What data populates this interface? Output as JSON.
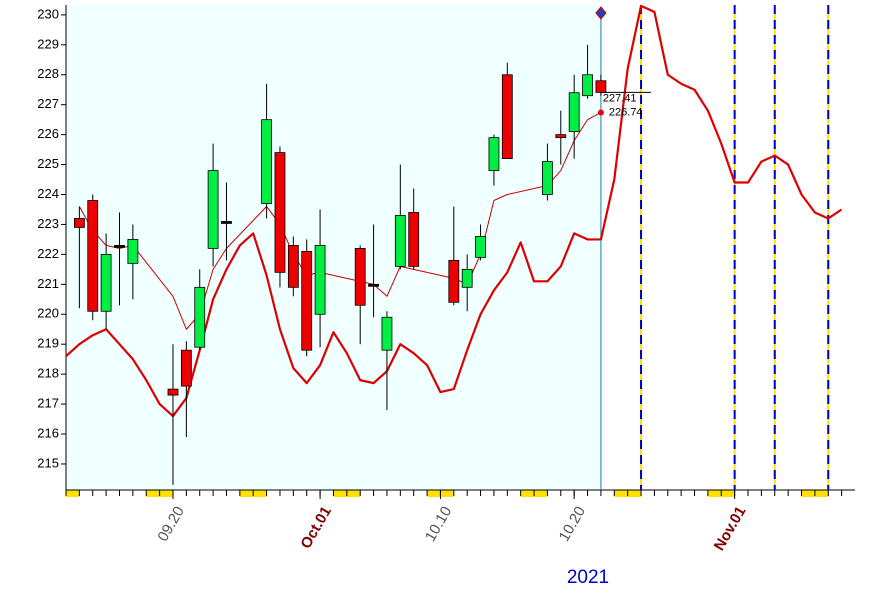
{
  "chart_data": {
    "type": "candlestick",
    "xlabel": "2021",
    "xlim": [
      "2021-09-12",
      "2021-11-10"
    ],
    "ylim": [
      214.13,
      230.33
    ],
    "yticks": [
      215,
      216,
      217,
      218,
      219,
      220,
      221,
      222,
      223,
      224,
      225,
      226,
      227,
      228,
      229,
      230
    ],
    "xticks": [
      {
        "value": "2021-09-20",
        "label": "09.20"
      },
      {
        "value": "2021-10-10",
        "label": "10.10"
      },
      {
        "value": "2021-10-20",
        "label": "10.20"
      }
    ],
    "month_ticks": [
      {
        "value": "2021-10-01",
        "label": "Oct.01"
      },
      {
        "value": "2021-11-01",
        "label": "Nov.01"
      }
    ],
    "up_color": "#00ee44",
    "down_color": "#ee0000",
    "x": [
      "2021-09-13",
      "2021-09-14",
      "2021-09-15",
      "2021-09-16",
      "2021-09-17",
      "2021-09-20",
      "2021-09-21",
      "2021-09-22",
      "2021-09-23",
      "2021-09-24",
      "2021-09-27",
      "2021-09-28",
      "2021-09-29",
      "2021-09-30",
      "2021-10-01",
      "2021-10-04",
      "2021-10-05",
      "2021-10-06",
      "2021-10-07",
      "2021-10-08",
      "2021-10-11",
      "2021-10-12",
      "2021-10-13",
      "2021-10-14",
      "2021-10-15",
      "2021-10-18",
      "2021-10-19",
      "2021-10-20",
      "2021-10-21",
      "2021-10-22"
    ],
    "open": [
      223.2,
      223.8,
      220.1,
      222.3,
      221.7,
      217.5,
      218.8,
      218.9,
      222.2,
      223.1,
      223.7,
      225.4,
      222.3,
      222.1,
      220.0,
      222.2,
      221.0,
      218.8,
      221.6,
      223.4,
      221.8,
      220.9,
      221.9,
      224.8,
      228.0,
      224.0,
      226.0,
      226.1,
      227.3,
      227.8
    ],
    "high": [
      223.6,
      224.0,
      222.7,
      223.4,
      223.0,
      219.0,
      219.1,
      221.5,
      225.7,
      224.4,
      227.7,
      225.6,
      222.6,
      222.5,
      223.5,
      222.3,
      223.0,
      220.1,
      225.0,
      224.2,
      223.6,
      222.0,
      223.0,
      226.0,
      228.4,
      225.7,
      226.8,
      228.0,
      229.0,
      228.0
    ],
    "low": [
      220.2,
      219.8,
      219.5,
      220.3,
      220.5,
      214.3,
      215.9,
      218.8,
      221.6,
      221.8,
      223.2,
      220.9,
      220.6,
      218.6,
      218.9,
      219.0,
      219.9,
      216.8,
      221.5,
      221.5,
      220.3,
      220.1,
      221.8,
      224.3,
      225.2,
      223.8,
      225.0,
      225.2,
      227.2,
      227.3
    ],
    "close": [
      222.9,
      220.1,
      222.0,
      222.3,
      222.5,
      217.3,
      217.6,
      220.9,
      224.8,
      223.1,
      226.5,
      221.4,
      220.9,
      218.8,
      222.3,
      220.3,
      221.0,
      219.9,
      223.3,
      221.6,
      220.4,
      221.5,
      222.6,
      225.9,
      225.2,
      225.1,
      225.9,
      227.4,
      228.0,
      227.41
    ],
    "ma_line": {
      "color": "#cc0000",
      "values": [
        223.6,
        222.8,
        222.3,
        222.2,
        222.3,
        220.6,
        219.5,
        220.0,
        221.5,
        222.2,
        223.6,
        223.0,
        222.0,
        221.3,
        221.4,
        221.1,
        221.0,
        220.6,
        221.6,
        221.5,
        221.2,
        221.0,
        222.0,
        223.8,
        224.0,
        224.3,
        224.8,
        225.8,
        226.5,
        226.74
      ]
    },
    "forecast_line": {
      "color": "#dd0000",
      "x": [
        "2021-09-12",
        "2021-09-13",
        "2021-09-14",
        "2021-09-15",
        "2021-09-16",
        "2021-09-17",
        "2021-09-18",
        "2021-09-19",
        "2021-09-20",
        "2021-09-21",
        "2021-09-22",
        "2021-09-23",
        "2021-09-24",
        "2021-09-25",
        "2021-09-26",
        "2021-09-27",
        "2021-09-28",
        "2021-09-29",
        "2021-09-30",
        "2021-10-01",
        "2021-10-02",
        "2021-10-03",
        "2021-10-04",
        "2021-10-05",
        "2021-10-06",
        "2021-10-07",
        "2021-10-08",
        "2021-10-09",
        "2021-10-10",
        "2021-10-11",
        "2021-10-12",
        "2021-10-13",
        "2021-10-14",
        "2021-10-15",
        "2021-10-16",
        "2021-10-17",
        "2021-10-18",
        "2021-10-19",
        "2021-10-20",
        "2021-10-21",
        "2021-10-22",
        "2021-10-23",
        "2021-10-24",
        "2021-10-25",
        "2021-10-26",
        "2021-10-27",
        "2021-10-28",
        "2021-10-29",
        "2021-10-30",
        "2021-10-31",
        "2021-11-01",
        "2021-11-02",
        "2021-11-03",
        "2021-11-04",
        "2021-11-05",
        "2021-11-06",
        "2021-11-07",
        "2021-11-08",
        "2021-11-09"
      ],
      "values": [
        218.6,
        219.0,
        219.3,
        219.5,
        219.0,
        218.5,
        217.8,
        217.0,
        216.6,
        217.2,
        218.8,
        220.5,
        221.5,
        222.3,
        222.7,
        221.3,
        219.5,
        218.2,
        217.7,
        218.3,
        219.4,
        218.7,
        217.8,
        217.7,
        218.1,
        219.0,
        218.7,
        218.3,
        217.4,
        217.5,
        218.8,
        220.0,
        220.8,
        221.4,
        222.4,
        221.1,
        221.1,
        221.6,
        222.7,
        222.5,
        222.5,
        224.5,
        228.2,
        230.3,
        230.1,
        228.0,
        227.7,
        227.5,
        226.8,
        225.7,
        224.4,
        224.4,
        225.1,
        225.3,
        225.0,
        224.0,
        223.4,
        223.2,
        223.5
      ]
    },
    "current_date": "2021-10-22",
    "event_dates": [
      "2021-10-25",
      "2021-11-01",
      "2021-11-04",
      "2021-11-08"
    ]
  }
}
